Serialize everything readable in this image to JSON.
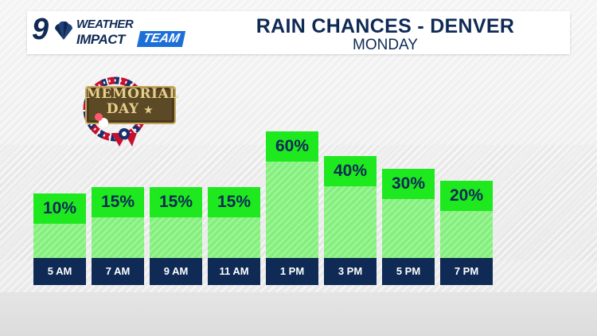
{
  "header": {
    "logo": {
      "number": "9",
      "line1": "WEATHER",
      "line2": "IMPACT",
      "line3": "TEAM"
    },
    "title": "RAIN CHANCES - DENVER",
    "subtitle": "MONDAY"
  },
  "badge": {
    "line1": "MEMORIAL",
    "line2": "DAY",
    "star": "★"
  },
  "colors": {
    "navy": "#0f2a55",
    "bar_head": "#1ee81e",
    "bar_fill": "#83f07c",
    "team_blue": "#1d6fd8"
  },
  "chart_data": {
    "type": "bar",
    "title": "RAIN CHANCES - DENVER",
    "subtitle": "MONDAY",
    "categories": [
      "5 AM",
      "7 AM",
      "9 AM",
      "11 AM",
      "1 PM",
      "3 PM",
      "5 PM",
      "7 PM"
    ],
    "values": [
      10,
      15,
      15,
      15,
      60,
      40,
      30,
      20
    ],
    "value_labels": [
      "10%",
      "15%",
      "15%",
      "15%",
      "60%",
      "40%",
      "30%",
      "20%"
    ],
    "unit": "%",
    "ylim": [
      0,
      100
    ],
    "xlabel": "",
    "ylabel": ""
  }
}
